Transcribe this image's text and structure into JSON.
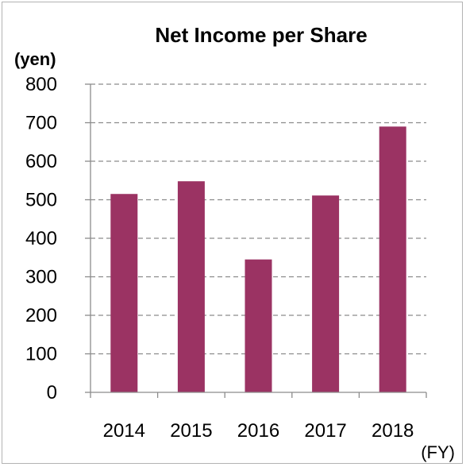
{
  "chart_data": {
    "type": "bar",
    "title": "Net Income per Share",
    "ylabel": "(yen)",
    "xlabel": "(FY)",
    "categories": [
      "2014",
      "2015",
      "2016",
      "2017",
      "2018"
    ],
    "values": [
      515,
      548,
      345,
      511,
      690
    ],
    "ylim": [
      0,
      800
    ],
    "yticks": [
      0,
      100,
      200,
      300,
      400,
      500,
      600,
      700,
      800
    ],
    "grid": true,
    "legend": "none",
    "bar_color": "#9b3363"
  }
}
